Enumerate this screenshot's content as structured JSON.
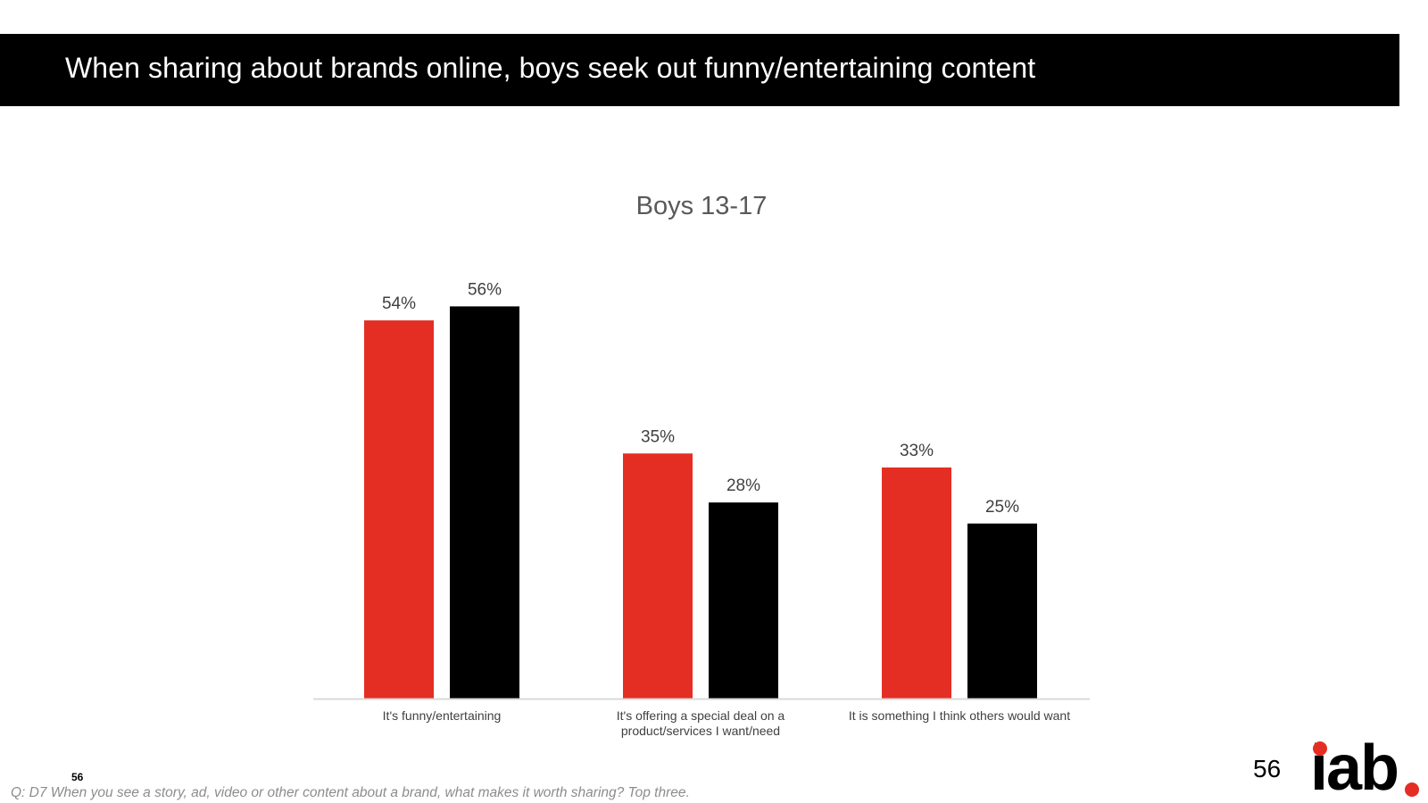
{
  "slide": {
    "title": "When sharing about brands online, boys seek out funny/entertaining content",
    "small_page_number": "56",
    "page_number": "56",
    "question": "Q: D7 When you see a story, ad, video or other content about a brand, what makes it worth sharing? Top three.",
    "logo_text": "iab",
    "colors": {
      "title_bar": "#000000",
      "title_text": "#ffffff",
      "brand_red": "#e42e24"
    }
  },
  "chart_data": {
    "type": "bar",
    "title": "Boys 13-17",
    "xlabel": "",
    "ylabel": "",
    "ylim": [
      0,
      60
    ],
    "grid": false,
    "legend": "none",
    "categories": [
      [
        "It's funny/entertaining"
      ],
      [
        "It's offering a special deal on a",
        "product/services I want/need"
      ],
      [
        "It is something I think others would want"
      ]
    ],
    "series": [
      {
        "color": "#e42e24",
        "values": [
          54,
          35,
          33
        ],
        "labels": [
          "54%",
          "35%",
          "33%"
        ]
      },
      {
        "color": "#000000",
        "values": [
          56,
          28,
          25
        ],
        "labels": [
          "56%",
          "28%",
          "25%"
        ]
      }
    ]
  }
}
